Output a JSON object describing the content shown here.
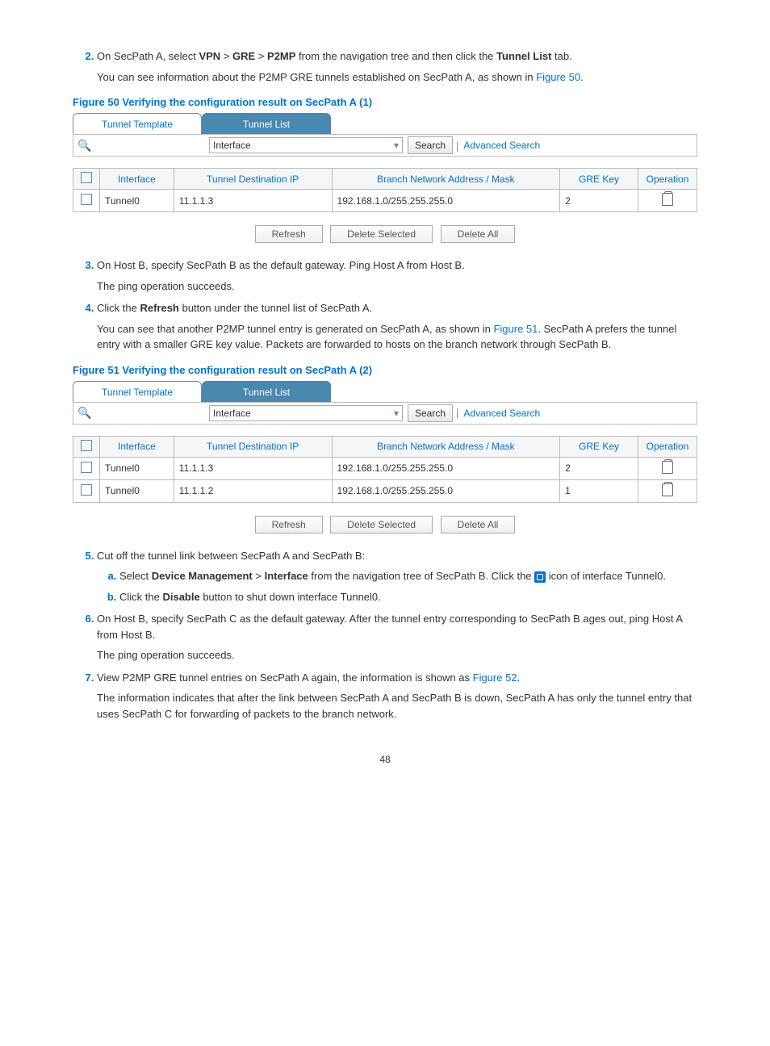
{
  "steps": {
    "s2_a": "On SecPath A, select ",
    "s2_b": " from the navigation tree and then click the ",
    "s2_c": " tab.",
    "s2_nav1": "VPN",
    "s2_nav2": "GRE",
    "s2_nav3": "P2MP",
    "s2_tab": "Tunnel List",
    "s2_p1a": "You can see information about the P2MP GRE tunnels established on SecPath A, as shown in ",
    "s2_p1ref": "Figure 50",
    "s2_p1b": ".",
    "s3_a": "On Host B, specify SecPath B as the default gateway. Ping Host A from Host B.",
    "s3_p": "The ping operation succeeds.",
    "s4_a": "Click the ",
    "s4_b": "Refresh",
    "s4_c": " button under the tunnel list of SecPath A.",
    "s4_p1a": "You can see that another P2MP tunnel entry is generated on SecPath A, as shown in ",
    "s4_p1ref": "Figure 51",
    "s4_p1b": ". SecPath A prefers the tunnel entry with a smaller GRE key value. Packets are forwarded to hosts on the branch network through SecPath B.",
    "s5_a": "Cut off the tunnel link between SecPath A and SecPath B:",
    "s5a_a": "Select ",
    "s5a_b": "Device Management",
    "s5a_c": " > ",
    "s5a_d": "Interface",
    "s5a_e": " from the navigation tree of SecPath B. Click the ",
    "s5a_f": " icon of interface Tunnel0.",
    "s5b_a": "Click the ",
    "s5b_b": "Disable",
    "s5b_c": " button to shut down interface Tunnel0.",
    "s6_a": "On Host B, specify SecPath C as the default gateway. After the tunnel entry corresponding to SecPath B ages out, ping Host A from Host B.",
    "s6_p": "The ping operation succeeds.",
    "s7_a": "View P2MP GRE tunnel entries on SecPath A again, the information is shown as ",
    "s7_ref": "Figure 52",
    "s7_b": ".",
    "s7_p": "The information indicates that after the link between SecPath A and SecPath B is down, SecPath A has only the tunnel entry that uses SecPath C for forwarding of packets to the branch network."
  },
  "fig50_caption": "Figure 50 Verifying the configuration result on SecPath A (1)",
  "fig51_caption": "Figure 51 Verifying the configuration result on SecPath A (2)",
  "ui": {
    "tab_template": "Tunnel Template",
    "tab_list": "Tunnel List",
    "filter_field": "Interface",
    "search_btn": "Search",
    "advanced": "Advanced Search",
    "cols": {
      "interface": "Interface",
      "dest": "Tunnel Destination IP",
      "branch": "Branch Network Address / Mask",
      "gre": "GRE Key",
      "op": "Operation"
    },
    "btn_refresh": "Refresh",
    "btn_delsel": "Delete Selected",
    "btn_delall": "Delete All"
  },
  "fig50_rows": [
    {
      "if": "Tunnel0",
      "dest": "11.1.1.3",
      "branch": "192.168.1.0/255.255.255.0",
      "gre": "2"
    }
  ],
  "fig51_rows": [
    {
      "if": "Tunnel0",
      "dest": "11.1.1.3",
      "branch": "192.168.1.0/255.255.255.0",
      "gre": "2"
    },
    {
      "if": "Tunnel0",
      "dest": "11.1.1.2",
      "branch": "192.168.1.0/255.255.255.0",
      "gre": "1"
    }
  ],
  "page_number": "48"
}
